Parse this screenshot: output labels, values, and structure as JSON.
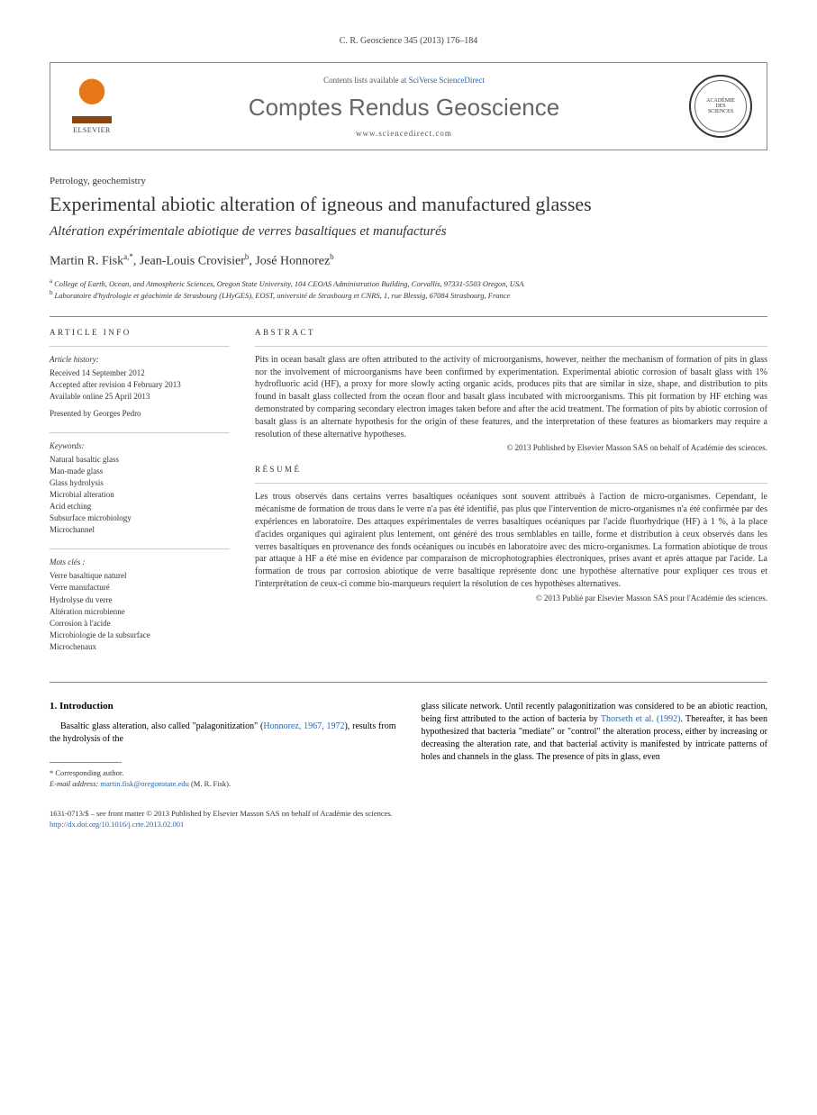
{
  "journal_ref": "C. R. Geoscience 345 (2013) 176–184",
  "header": {
    "elsevier_label": "ELSEVIER",
    "contents_prefix": "Contents lists available at ",
    "contents_link": "SciVerse ScienceDirect",
    "journal_name": "Comptes Rendus Geoscience",
    "journal_url": "www.sciencedirect.com"
  },
  "section_label": "Petrology, geochemistry",
  "title": "Experimental abiotic alteration of igneous and manufactured glasses",
  "subtitle": "Altération expérimentale abiotique de verres basaltiques et manufacturés",
  "authors_html": "Martin R. Fisk<sup>a,*</sup>, Jean-Louis Crovisier<sup>b</sup>, José Honnorez<sup>b</sup>",
  "affiliations": [
    {
      "sup": "a",
      "text": "College of Earth, Ocean, and Atmospheric Sciences, Oregon State University, 104 CEOAS Administration Building, Corvallis, 97331-5503 Oregon, USA"
    },
    {
      "sup": "b",
      "text": "Laboratoire d'hydrologie et géochimie de Strasbourg (LHyGES), EOST, université de Strasbourg et CNRS, 1, rue Blessig, 67084 Strasbourg, France"
    }
  ],
  "article_info": {
    "heading": "ARTICLE INFO",
    "history_label": "Article history:",
    "history": [
      "Received 14 September 2012",
      "Accepted after revision 4 February 2013",
      "Available online 25 April 2013"
    ],
    "presented": "Presented by Georges Pedro",
    "keywords_label": "Keywords:",
    "keywords": [
      "Natural basaltic glass",
      "Man-made glass",
      "Glass hydrolysis",
      "Microbial alteration",
      "Acid etching",
      "Subsurface microbiology",
      "Microchannel"
    ],
    "mots_cles_label": "Mots clés :",
    "mots_cles": [
      "Verre basaltique naturel",
      "Verre manufacturé",
      "Hydrolyse du verre",
      "Altération microbienne",
      "Corrosion à l'acide",
      "Microbiologie de la subsurface",
      "Microchenaux"
    ]
  },
  "abstract": {
    "heading": "ABSTRACT",
    "text": "Pits in ocean basalt glass are often attributed to the activity of microorganisms, however, neither the mechanism of formation of pits in glass nor the involvement of microorganisms have been confirmed by experimentation. Experimental abiotic corrosion of basalt glass with 1% hydrofluoric acid (HF), a proxy for more slowly acting organic acids, produces pits that are similar in size, shape, and distribution to pits found in basalt glass collected from the ocean floor and basalt glass incubated with microorganisms. This pit formation by HF etching was demonstrated by comparing secondary electron images taken before and after the acid treatment. The formation of pits by abiotic corrosion of basalt glass is an alternate hypothesis for the origin of these features, and the interpretation of these features as biomarkers may require a resolution of these alternative hypotheses.",
    "copyright": "© 2013 Published by Elsevier Masson SAS on behalf of Académie des sciences."
  },
  "resume": {
    "heading": "RÉSUMÉ",
    "text": "Les trous observés dans certains verres basaltiques océaniques sont souvent attribués à l'action de micro-organismes. Cependant, le mécanisme de formation de trous dans le verre n'a pas été identifié, pas plus que l'intervention de micro-organismes n'a été confirmée par des expériences en laboratoire. Des attaques expérimentales de verres basaltiques océaniques par l'acide fluorhydrique (HF) à 1 %, à la place d'acides organiques qui agiraient plus lentement, ont généré des trous semblables en taille, forme et distribution à ceux observés dans les verres basaltiques en provenance des fonds océaniques ou incubés en laboratoire avec des micro-organismes. La formation abiotique de trous par attaque à HF a été mise en évidence par comparaison de microphotographies électroniques, prises avant et après attaque par l'acide. La formation de trous par corrosion abiotique de verre basaltique représente donc une hypothèse alternative pour expliquer ces trous et l'interprétation de ceux-ci comme bio-marqueurs requiert la résolution de ces hypothèses alternatives.",
    "copyright": "© 2013 Publié par Elsevier Masson SAS pour l'Académie des sciences."
  },
  "introduction": {
    "heading": "1. Introduction",
    "col1_pre": "Basaltic glass alteration, also called \"palagonitization\" (",
    "col1_link": "Honnorez, 1967, 1972",
    "col1_post": "), results from the hydrolysis of the",
    "col2_pre": "glass silicate network. Until recently palagonitization was considered to be an abiotic reaction, being first attributed to the action of bacteria by ",
    "col2_link": "Thorseth et al. (1992)",
    "col2_post": ". Thereafter, it has been hypothesized that bacteria \"mediate\" or \"control\" the alteration process, either by increasing or decreasing the alteration rate, and that bacterial activity is manifested by intricate patterns of holes and channels in the glass. The presence of pits in glass, even"
  },
  "footnote": {
    "corresponding": "* Corresponding author.",
    "email_label": "E-mail address:",
    "email": "martin.fisk@oregonstate.edu",
    "email_name": "(M. R. Fisk)."
  },
  "footer": {
    "line1": "1631-0713/$ – see front matter © 2013 Published by Elsevier Masson SAS on behalf of Académie des sciences.",
    "doi": "http://dx.doi.org/10.1016/j.crte.2013.02.001"
  }
}
